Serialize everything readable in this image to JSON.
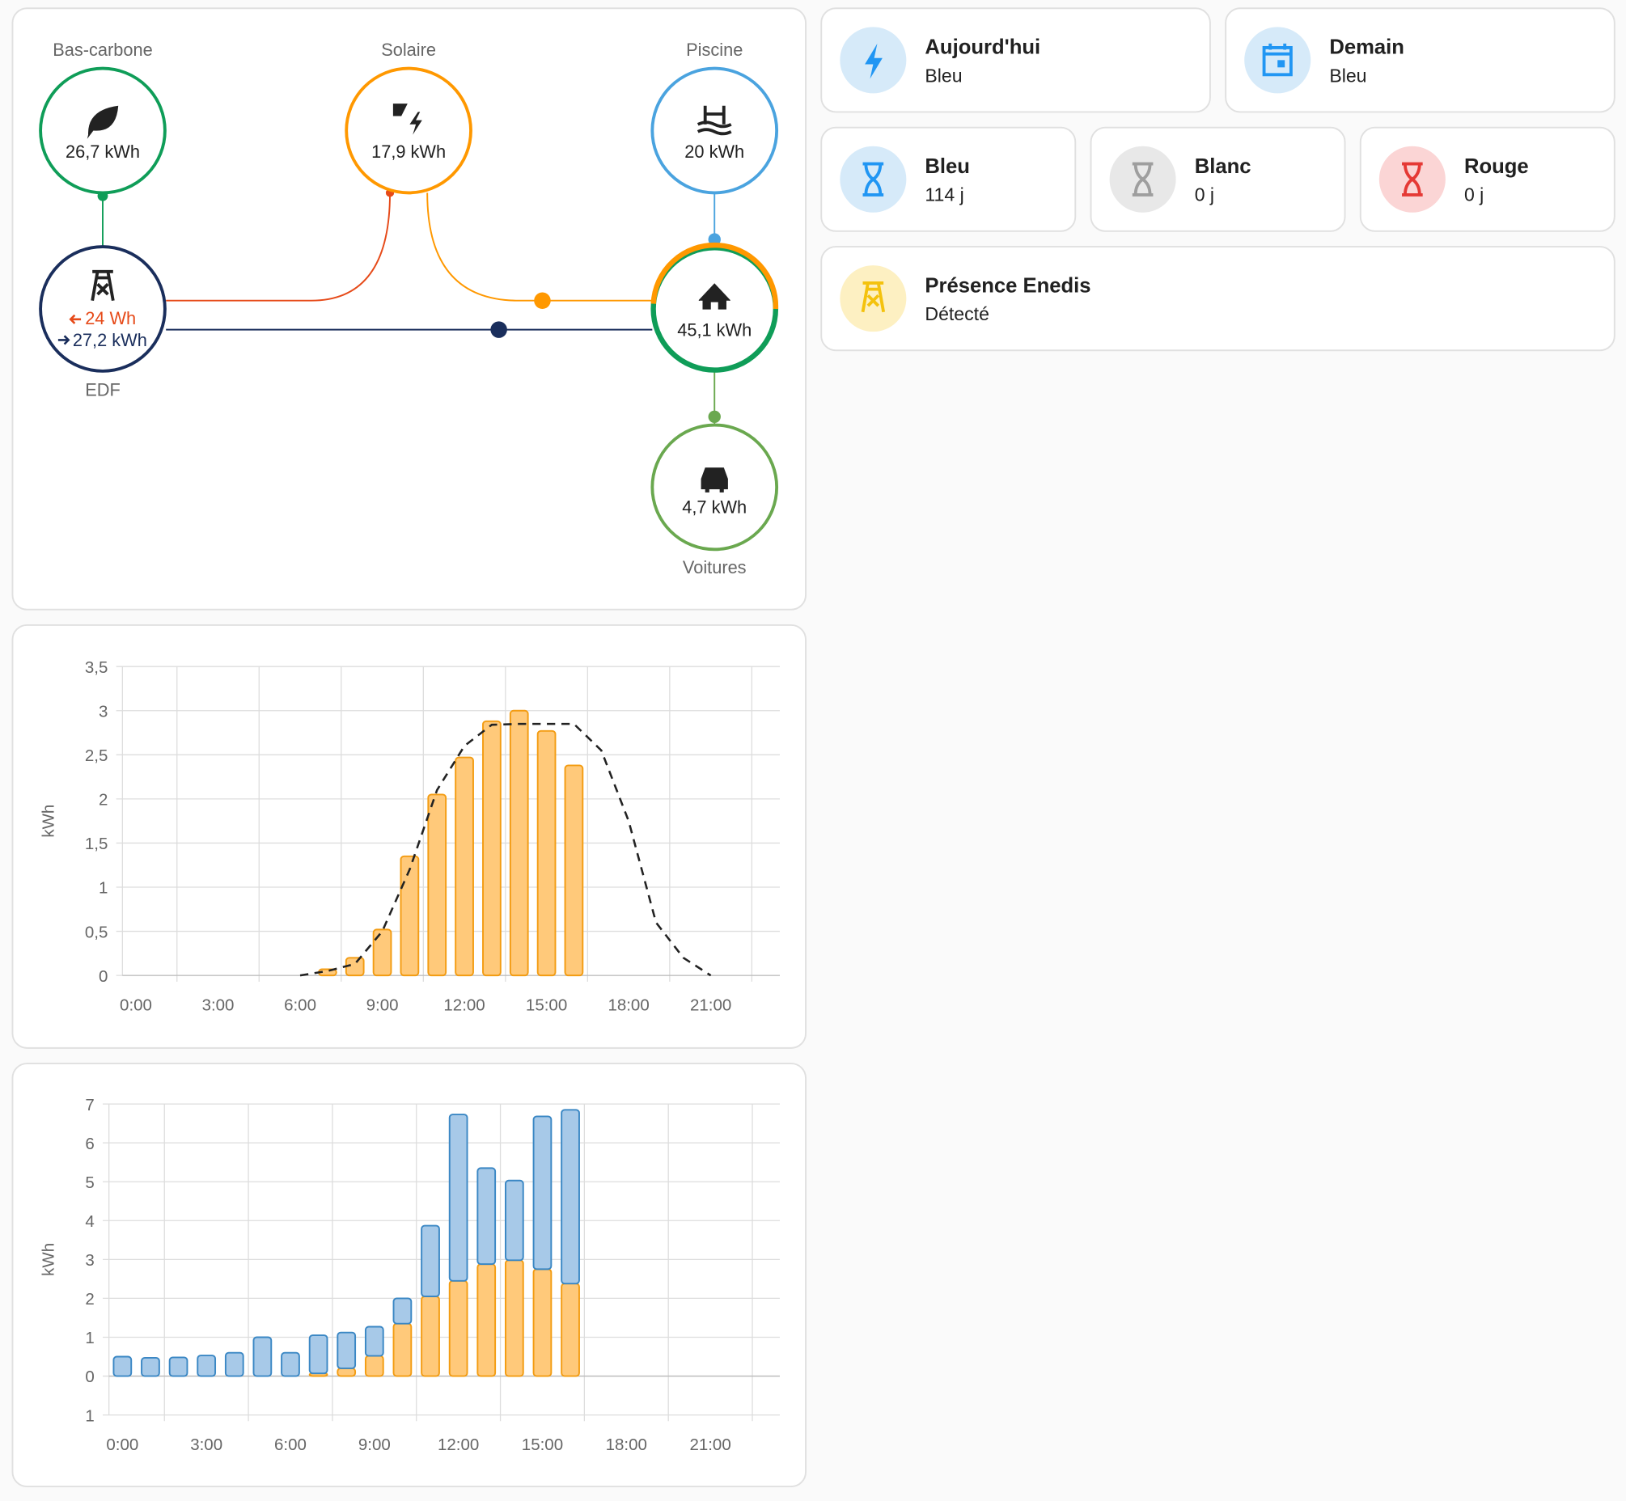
{
  "energy_flow": {
    "nodes": [
      {
        "label": "Bas-carbone",
        "value": "26,7 kWh"
      },
      {
        "label": "Solaire",
        "value": "17,9 kWh"
      },
      {
        "label": "Piscine",
        "value": "20 kWh"
      },
      {
        "label": "EDF",
        "value_in": "24 Wh",
        "value_out": "27,2 kWh"
      },
      {
        "value": "45,1 kWh"
      },
      {
        "label": "Voitures",
        "value": "4,7 kWh"
      }
    ]
  },
  "tiles": [
    {
      "title": "Aujourd'hui",
      "state": "Bleu"
    },
    {
      "title": "Demain",
      "state": "Bleu"
    },
    {
      "title": "Bleu",
      "state": "114 j"
    },
    {
      "title": "Blanc",
      "state": "0 j"
    },
    {
      "title": "Rouge",
      "state": "0 j"
    },
    {
      "title": "Présence Enedis",
      "state": "Détecté"
    }
  ],
  "chart_data": [
    {
      "type": "bar",
      "ylabel": "kWh",
      "categories": [
        "0:00",
        null,
        null,
        "3:00",
        null,
        null,
        "6:00",
        null,
        null,
        "9:00",
        null,
        null,
        "12:00",
        null,
        null,
        "15:00",
        null,
        null,
        "18:00",
        null,
        null,
        "21:00",
        null,
        null
      ],
      "ylim": [
        0,
        3.5
      ],
      "yticks": [
        0,
        {
          "value": 0.5,
          "label": "0,5"
        },
        1,
        {
          "value": 1.5,
          "label": "1,5"
        },
        2,
        {
          "value": 2.5,
          "label": "2,5"
        },
        3,
        {
          "value": 3.5,
          "label": "3,5"
        }
      ],
      "grid": true,
      "series": [
        {
          "type": "bar",
          "color": "#ffc97a",
          "values": [
            0,
            0,
            0,
            0,
            0,
            0,
            0,
            0.07,
            0.2,
            0.52,
            1.35,
            2.05,
            2.47,
            2.88,
            3.0,
            2.77,
            2.38,
            null,
            null,
            null,
            null,
            null,
            null,
            null
          ]
        },
        {
          "type": "line",
          "color": "#222222",
          "dashed": true,
          "values": [
            null,
            null,
            null,
            null,
            null,
            null,
            0,
            0.05,
            0.13,
            0.5,
            1.2,
            2.1,
            2.6,
            2.84,
            2.85,
            2.85,
            2.85,
            2.55,
            1.75,
            0.6,
            0.2,
            0,
            null,
            null
          ]
        }
      ]
    },
    {
      "type": "stacked_bar",
      "ylabel": "kWh",
      "categories": [
        "0:00",
        null,
        null,
        "3:00",
        null,
        null,
        "6:00",
        null,
        null,
        "9:00",
        null,
        null,
        "12:00",
        null,
        null,
        "15:00",
        null,
        null,
        "18:00",
        null,
        null,
        "21:00",
        null,
        null
      ],
      "ylim": [
        -1,
        7
      ],
      "yticks": [
        {
          "value": -1,
          "label": "1"
        },
        0,
        1,
        2,
        3,
        4,
        5,
        6,
        7
      ],
      "grid": true,
      "series": [
        {
          "color": "#ffc97a",
          "values": [
            0,
            0,
            0,
            0,
            0,
            0,
            0,
            0.07,
            0.2,
            0.52,
            1.35,
            2.05,
            2.45,
            2.88,
            2.98,
            2.75,
            2.38,
            null,
            null,
            null,
            null,
            null,
            null,
            null
          ]
        },
        {
          "color": "#a7c9e8",
          "values": [
            0.5,
            0.47,
            0.48,
            0.53,
            0.6,
            1.0,
            0.6,
            0.98,
            0.92,
            0.75,
            0.65,
            1.82,
            4.28,
            2.47,
            2.05,
            3.93,
            4.47,
            null,
            null,
            null,
            null,
            null,
            null,
            null
          ]
        }
      ]
    }
  ]
}
